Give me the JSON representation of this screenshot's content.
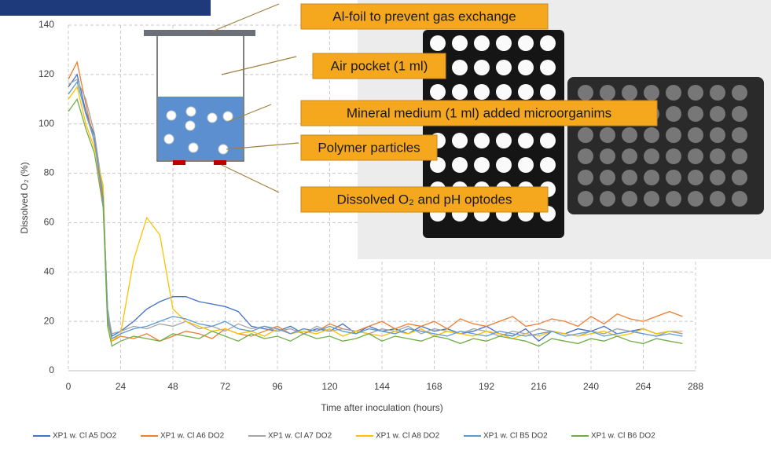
{
  "chart_data": {
    "type": "line",
    "x_label": "Time after inoculation (hours)",
    "y_label": "Dissolved O₂ (%)",
    "x": [
      0,
      4,
      8,
      12,
      16,
      18,
      20,
      24,
      30,
      36,
      42,
      48,
      54,
      60,
      66,
      72,
      78,
      84,
      90,
      96,
      102,
      108,
      114,
      120,
      126,
      132,
      138,
      144,
      150,
      156,
      162,
      168,
      174,
      180,
      186,
      192,
      198,
      204,
      210,
      216,
      222,
      228,
      234,
      240,
      246,
      252,
      258,
      264,
      270,
      276,
      282
    ],
    "xlim": [
      0,
      288
    ],
    "xticks": [
      0,
      24,
      48,
      72,
      96,
      120,
      144,
      168,
      192,
      216,
      240,
      264,
      288
    ],
    "ylim": [
      0,
      140
    ],
    "yticks": [
      0,
      20,
      40,
      60,
      80,
      100,
      120,
      140
    ],
    "grid": true,
    "series": [
      {
        "name": "XP1 w. Cl A5 DO2",
        "color": "#4472c4",
        "values": [
          115,
          120,
          105,
          95,
          70,
          25,
          14,
          16,
          20,
          25,
          28,
          30,
          30,
          28,
          27,
          26,
          24,
          18,
          17,
          16,
          18,
          15,
          17,
          16,
          19,
          15,
          18,
          16,
          17,
          15,
          18,
          16,
          17,
          15,
          16,
          18,
          15,
          14,
          17,
          12,
          16,
          15,
          17,
          16,
          18,
          15,
          16,
          17,
          15,
          16,
          15
        ]
      },
      {
        "name": "XP1 w. Cl A6 DO2",
        "color": "#ed7d31",
        "values": [
          118,
          125,
          108,
          92,
          68,
          22,
          12,
          14,
          13,
          15,
          12,
          14,
          16,
          15,
          13,
          17,
          15,
          14,
          16,
          18,
          15,
          17,
          16,
          19,
          17,
          16,
          18,
          20,
          17,
          19,
          18,
          20,
          17,
          21,
          19,
          18,
          20,
          22,
          18,
          19,
          21,
          20,
          18,
          22,
          19,
          23,
          21,
          20,
          22,
          24,
          22
        ]
      },
      {
        "name": "XP1 w. Cl A7 DO2",
        "color": "#a5a5a5",
        "values": [
          116,
          118,
          110,
          96,
          72,
          24,
          15,
          16,
          18,
          17,
          19,
          18,
          20,
          17,
          18,
          16,
          19,
          17,
          18,
          16,
          17,
          15,
          18,
          16,
          17,
          16,
          15,
          17,
          16,
          18,
          15,
          17,
          16,
          15,
          17,
          16,
          14,
          16,
          15,
          17,
          16,
          15,
          14,
          16,
          15,
          17,
          16,
          15,
          14,
          16,
          15
        ]
      },
      {
        "name": "XP1 w. Cl A8 DO2",
        "color": "#ffc000",
        "values": [
          110,
          115,
          100,
          90,
          75,
          20,
          12,
          15,
          45,
          62,
          55,
          25,
          20,
          18,
          16,
          17,
          15,
          16,
          14,
          17,
          15,
          16,
          15,
          17,
          14,
          16,
          15,
          14,
          16,
          15,
          17,
          14,
          16,
          15,
          14,
          16,
          15,
          13,
          15,
          14,
          16,
          15,
          14,
          15,
          16,
          14,
          15,
          17,
          15,
          16,
          16
        ]
      },
      {
        "name": "XP1 w. Cl B5 DO2",
        "color": "#5b9bd5",
        "values": [
          112,
          117,
          104,
          93,
          70,
          21,
          13,
          15,
          17,
          18,
          20,
          22,
          21,
          19,
          18,
          20,
          17,
          16,
          18,
          17,
          15,
          17,
          16,
          18,
          16,
          15,
          17,
          16,
          15,
          17,
          16,
          15,
          14,
          16,
          15,
          14,
          16,
          15,
          14,
          15,
          16,
          14,
          15,
          16,
          14,
          15,
          16,
          15,
          14,
          15,
          14
        ]
      },
      {
        "name": "XP1 w. Cl B6 DO2",
        "color": "#70ad47",
        "values": [
          105,
          110,
          98,
          88,
          66,
          18,
          10,
          12,
          14,
          13,
          12,
          15,
          14,
          13,
          16,
          14,
          12,
          15,
          13,
          14,
          12,
          15,
          13,
          14,
          12,
          13,
          15,
          12,
          14,
          13,
          12,
          14,
          13,
          11,
          13,
          12,
          14,
          13,
          12,
          10,
          13,
          12,
          11,
          13,
          12,
          14,
          12,
          11,
          13,
          12,
          11
        ]
      }
    ]
  },
  "diagram": {
    "labels": [
      "Al-foil to prevent gas exchange",
      "Air pocket (1 ml)",
      "Mineral medium (1 ml) added microorganims",
      "Polymer particles",
      "Dissolved O₂ and pH optodes"
    ]
  }
}
